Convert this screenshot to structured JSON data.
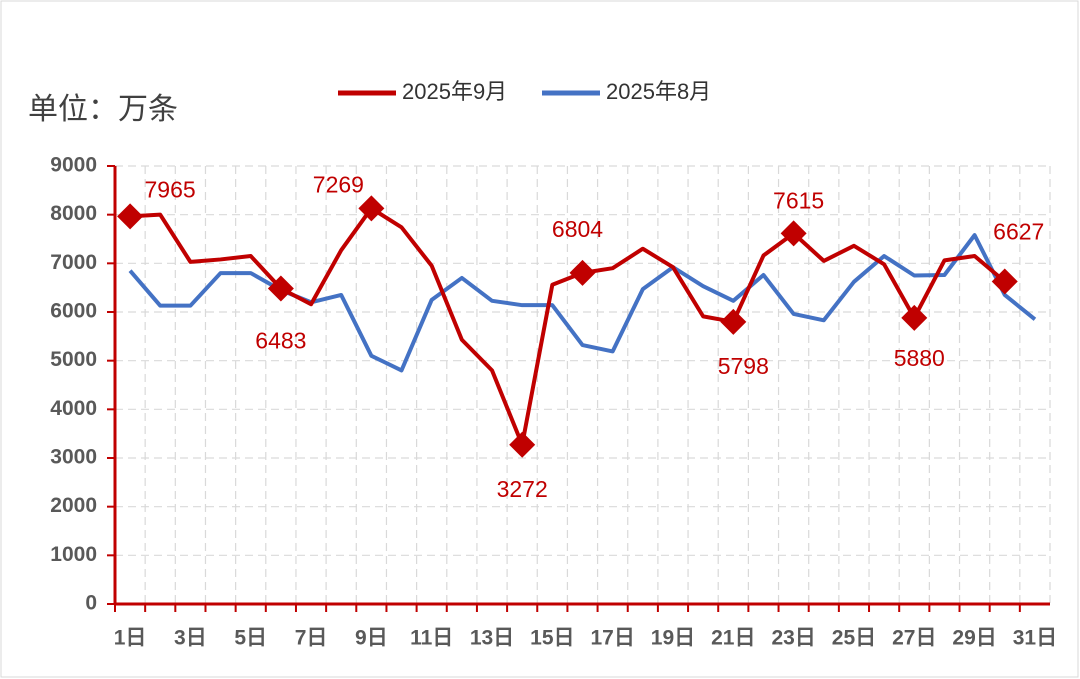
{
  "chart_data": {
    "type": "line",
    "unit_label": "单位：万条",
    "categories": [
      "1日",
      null,
      "3日",
      null,
      "5日",
      null,
      "7日",
      null,
      "9日",
      null,
      "11日",
      null,
      "13日",
      null,
      "15日",
      null,
      "17日",
      null,
      "19日",
      null,
      "21日",
      null,
      "23日",
      null,
      "25日",
      null,
      "27日",
      null,
      "29日",
      null,
      "31日"
    ],
    "series": [
      {
        "name": "2025年9月",
        "color": "#c00000",
        "values": [
          7965,
          8000,
          7030,
          7080,
          7150,
          6483,
          6160,
          7270,
          8130,
          7740,
          6950,
          5430,
          4800,
          3272,
          6560,
          6804,
          6900,
          7300,
          6920,
          5910,
          5798,
          7160,
          7615,
          7050,
          7360,
          6980,
          5880,
          7060,
          7150,
          6627,
          null
        ],
        "value_labels": [
          "7965",
          null,
          null,
          null,
          null,
          "6483",
          null,
          null,
          null,
          null,
          null,
          null,
          null,
          "3272",
          null,
          "6804",
          null,
          null,
          null,
          null,
          "5798",
          null,
          "7615",
          null,
          null,
          null,
          "5880",
          null,
          null,
          "6627",
          null
        ]
      },
      {
        "name": "2025年8月",
        "color": "#4472c4",
        "values": [
          6850,
          6130,
          6130,
          6800,
          6800,
          6450,
          6200,
          6350,
          5100,
          4800,
          6250,
          6700,
          6230,
          6140,
          6140,
          5320,
          5190,
          6470,
          6920,
          6530,
          6230,
          6760,
          5960,
          5830,
          6620,
          7150,
          6750,
          6760,
          7580,
          6350,
          5850
        ]
      }
    ],
    "annotations": [
      {
        "text": "7269"
      }
    ],
    "ylim": [
      0,
      9000
    ],
    "yticks": [
      0,
      1000,
      2000,
      3000,
      4000,
      5000,
      6000,
      7000,
      8000,
      9000
    ],
    "grid": true
  }
}
